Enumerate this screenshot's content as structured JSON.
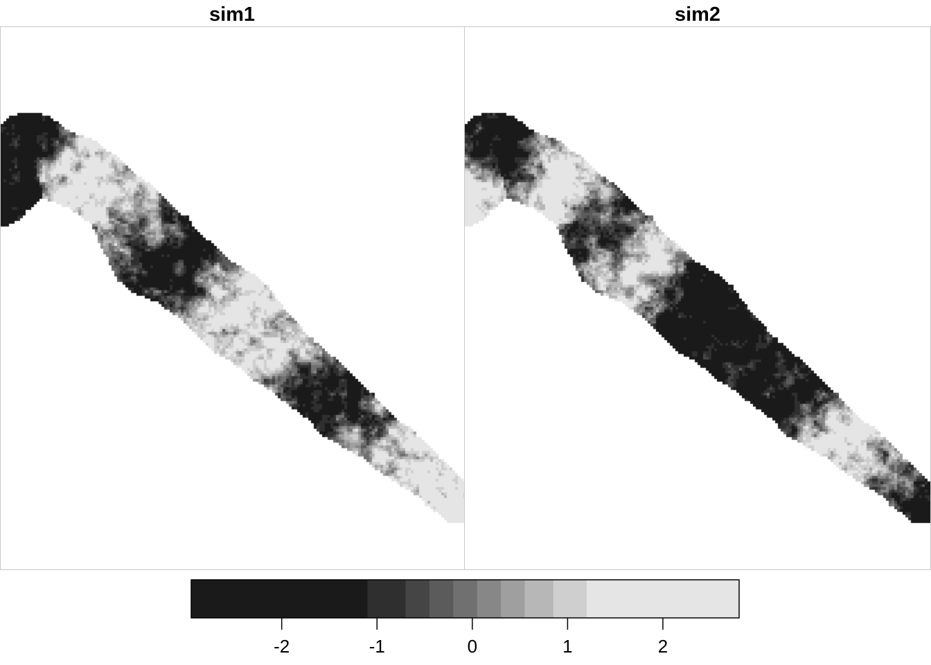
{
  "chart_data": [
    {
      "type": "heatmap",
      "title": "sim1",
      "colormap": "grayscale",
      "value_range": [
        -3,
        3
      ],
      "spatial_pattern": [
        {
          "along": 0.0,
          "value": -2.0
        },
        {
          "along": 0.08,
          "value": -1.6
        },
        {
          "along": 0.18,
          "value": 1.8
        },
        {
          "along": 0.28,
          "value": 0.4
        },
        {
          "along": 0.4,
          "value": -1.5
        },
        {
          "along": 0.52,
          "value": 1.6
        },
        {
          "along": 0.62,
          "value": 0.6
        },
        {
          "along": 0.72,
          "value": -1.6
        },
        {
          "along": 0.82,
          "value": 0.3
        },
        {
          "along": 0.92,
          "value": 1.5
        },
        {
          "along": 1.0,
          "value": 2.0
        }
      ]
    },
    {
      "type": "heatmap",
      "title": "sim2",
      "colormap": "grayscale",
      "value_range": [
        -3,
        3
      ],
      "spatial_pattern": [
        {
          "along": 0.0,
          "value": 1.8
        },
        {
          "along": 0.1,
          "value": -1.9
        },
        {
          "along": 0.2,
          "value": 2.0
        },
        {
          "along": 0.3,
          "value": -0.8
        },
        {
          "along": 0.4,
          "value": 1.4
        },
        {
          "along": 0.5,
          "value": -1.9
        },
        {
          "along": 0.62,
          "value": -1.6
        },
        {
          "along": 0.72,
          "value": -1.8
        },
        {
          "along": 0.82,
          "value": 1.6
        },
        {
          "along": 0.92,
          "value": 0.2
        },
        {
          "along": 1.0,
          "value": -1.6
        }
      ]
    }
  ],
  "legend": {
    "type": "stepped-colorbar",
    "range": [
      -2.95,
      2.8
    ],
    "breaks": [
      -2.95,
      -1.1,
      -0.7,
      -0.45,
      -0.2,
      0.05,
      0.3,
      0.55,
      0.85,
      1.2,
      2.8
    ],
    "colors": [
      "#1a1a1a",
      "#2f2f2f",
      "#454545",
      "#5b5b5b",
      "#707070",
      "#878787",
      "#9f9f9f",
      "#b7b7b7",
      "#cfcfcf",
      "#e5e5e5"
    ],
    "ticks": [
      {
        "value": -2,
        "label": "-2"
      },
      {
        "value": -1,
        "label": "-1"
      },
      {
        "value": 0,
        "label": "0"
      },
      {
        "value": 1,
        "label": "1"
      },
      {
        "value": 2,
        "label": "2"
      }
    ]
  }
}
